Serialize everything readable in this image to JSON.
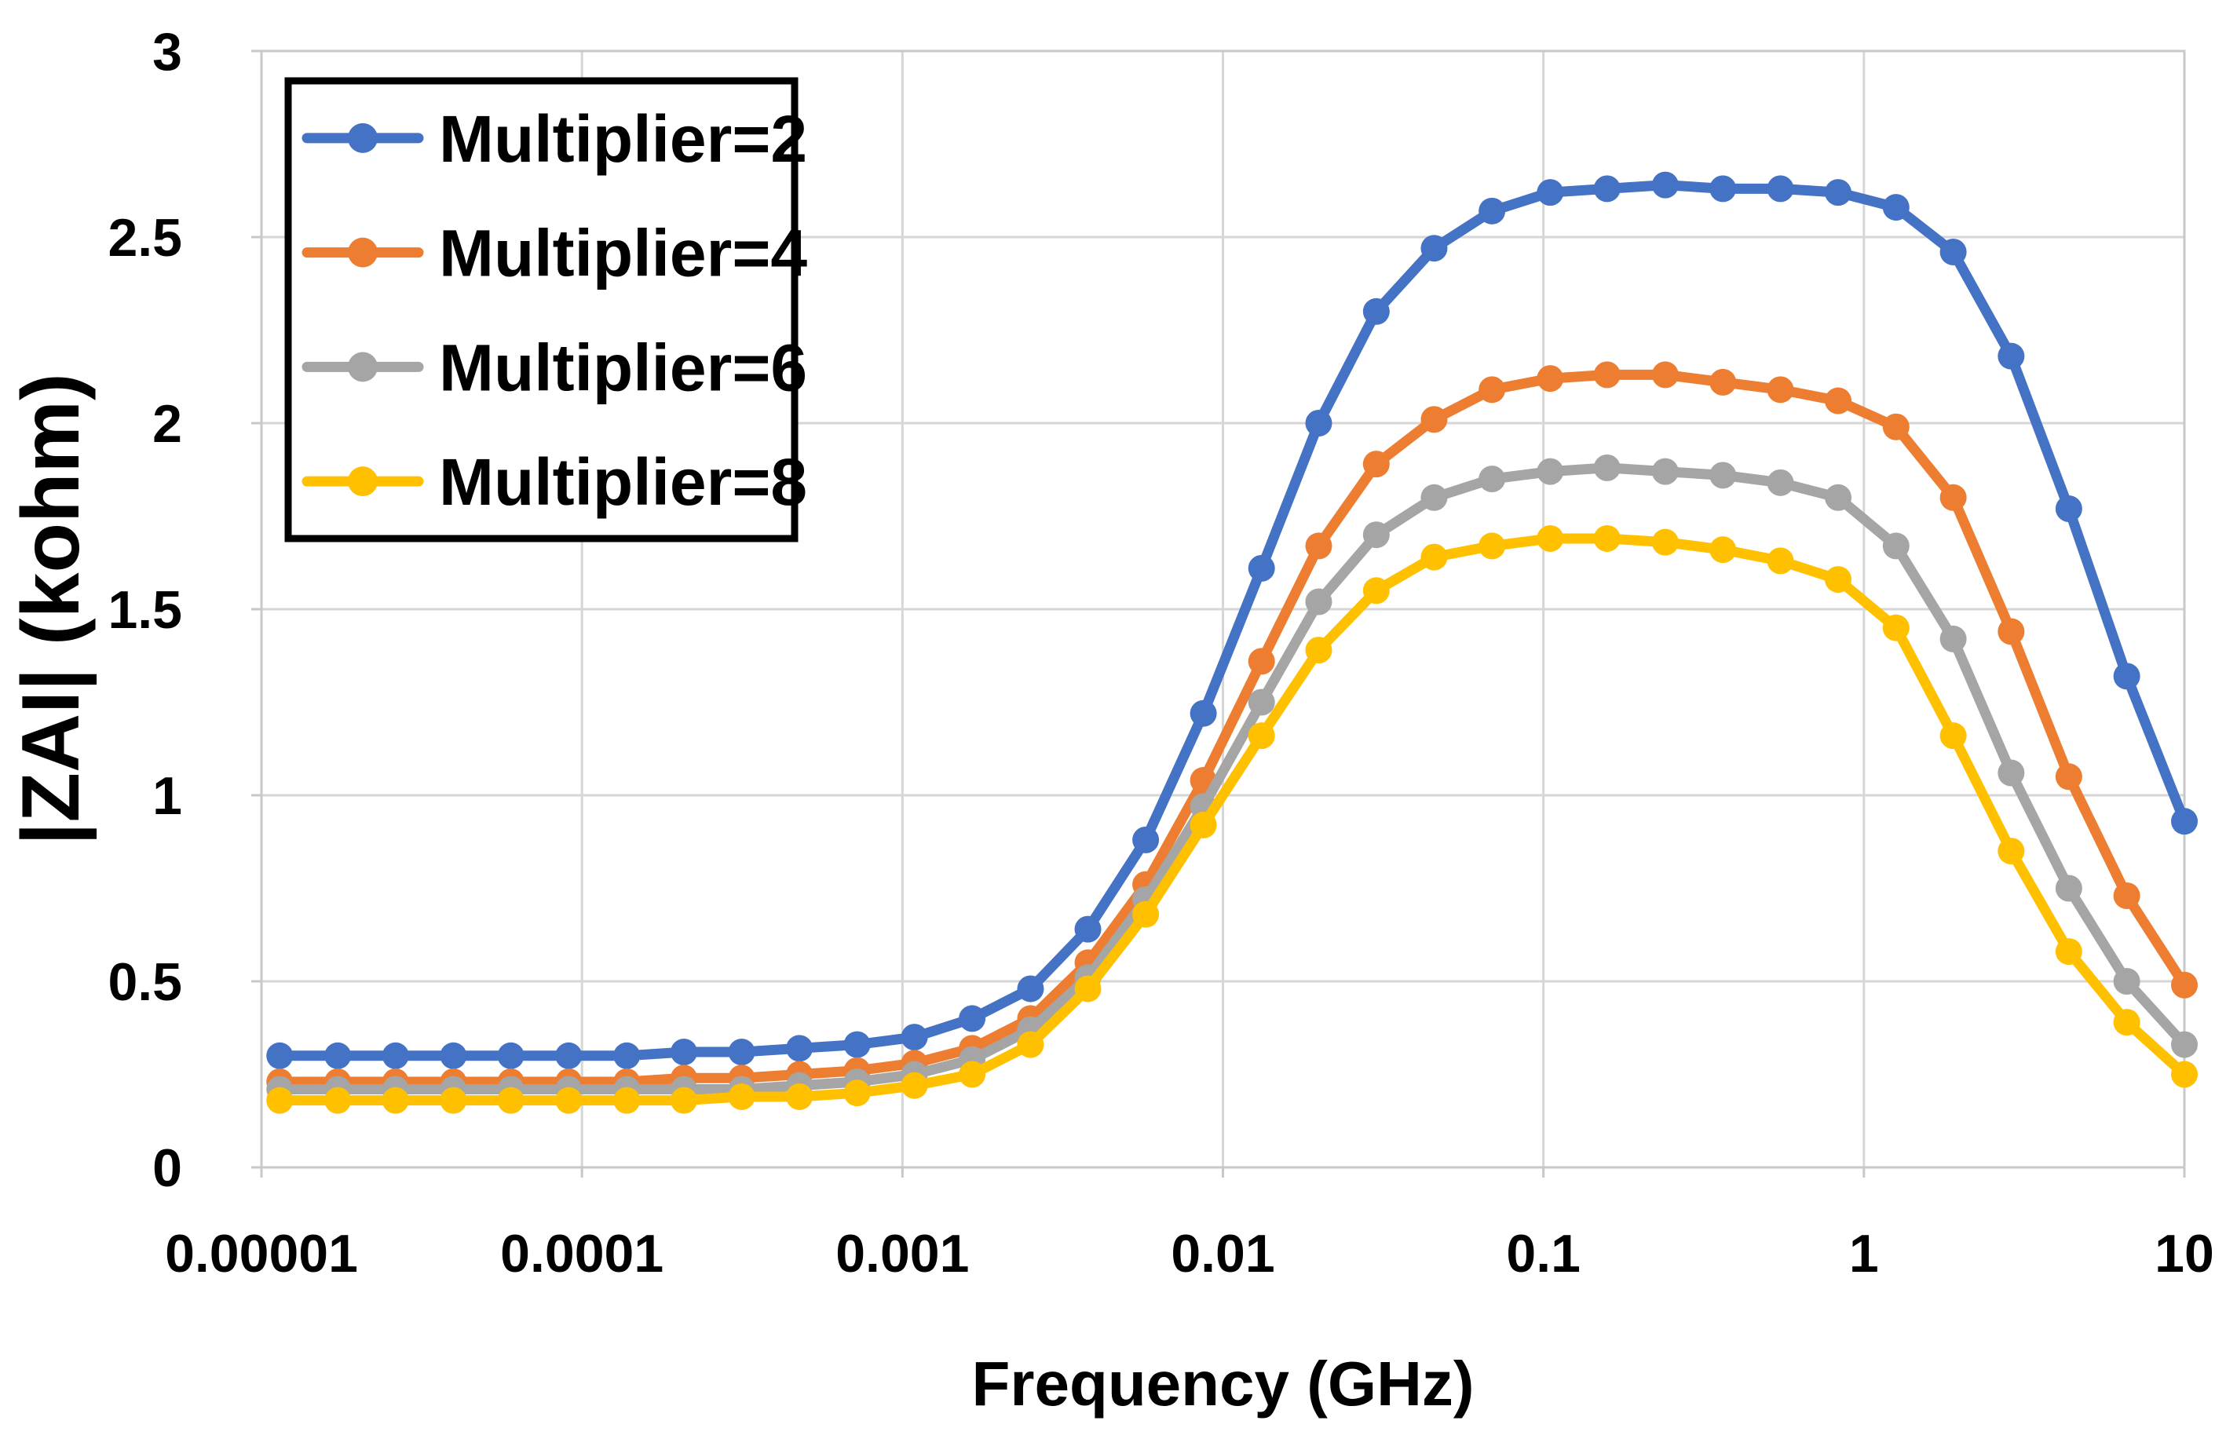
{
  "chart_data": {
    "type": "line",
    "title": "",
    "xlabel": "Frequency (GHz)",
    "ylabel": "|ZAI| (kohm)",
    "x_scale": "log",
    "xlim": [
      1e-05,
      10
    ],
    "ylim": [
      0,
      3
    ],
    "grid": true,
    "legend_position": "top-left-inside",
    "x_ticks": [
      1e-05,
      0.0001,
      0.001,
      0.01,
      0.1,
      1,
      10
    ],
    "x_tick_labels": [
      "0.00001",
      "0.0001",
      "0.001",
      "0.01",
      "0.1",
      "1",
      "10"
    ],
    "y_ticks": [
      0,
      0.5,
      1,
      1.5,
      2,
      2.5,
      3
    ],
    "y_tick_labels": [
      "0",
      "0.5",
      "1",
      "1.5",
      "2",
      "2.5",
      "3"
    ],
    "x": [
      1.14e-05,
      1.73e-05,
      2.62e-05,
      3.97e-05,
      6e-05,
      9.09e-05,
      0.000138,
      0.000208,
      0.000315,
      0.000477,
      0.000722,
      0.00109,
      0.00165,
      0.00251,
      0.00379,
      0.00574,
      0.00869,
      0.0132,
      0.0199,
      0.0301,
      0.0456,
      0.0691,
      0.105,
      0.158,
      0.24,
      0.363,
      0.549,
      0.831,
      1.26,
      1.9,
      2.88,
      4.36,
      6.61,
      10.0
    ],
    "series": [
      {
        "name": "Multiplier=2",
        "color": "#4472C4",
        "values": [
          0.3,
          0.3,
          0.3,
          0.3,
          0.3,
          0.3,
          0.3,
          0.31,
          0.31,
          0.32,
          0.33,
          0.35,
          0.4,
          0.48,
          0.64,
          0.88,
          1.22,
          1.61,
          2.0,
          2.3,
          2.47,
          2.57,
          2.62,
          2.63,
          2.64,
          2.63,
          2.63,
          2.62,
          2.58,
          2.46,
          2.18,
          1.77,
          1.32,
          0.93
        ]
      },
      {
        "name": "Multiplier=4",
        "color": "#ED7D31",
        "values": [
          0.23,
          0.23,
          0.23,
          0.23,
          0.23,
          0.23,
          0.23,
          0.24,
          0.24,
          0.25,
          0.26,
          0.28,
          0.32,
          0.4,
          0.55,
          0.76,
          1.04,
          1.36,
          1.67,
          1.89,
          2.01,
          2.09,
          2.12,
          2.13,
          2.13,
          2.11,
          2.09,
          2.06,
          1.99,
          1.8,
          1.44,
          1.05,
          0.73,
          0.49
        ]
      },
      {
        "name": "Multiplier=6",
        "color": "#A5A5A5",
        "values": [
          0.21,
          0.21,
          0.21,
          0.21,
          0.21,
          0.21,
          0.21,
          0.21,
          0.21,
          0.22,
          0.23,
          0.25,
          0.29,
          0.37,
          0.51,
          0.72,
          0.97,
          1.25,
          1.52,
          1.7,
          1.8,
          1.85,
          1.87,
          1.88,
          1.87,
          1.86,
          1.84,
          1.8,
          1.67,
          1.42,
          1.06,
          0.75,
          0.5,
          0.33
        ]
      },
      {
        "name": "Multiplier=8",
        "color": "#FFC000",
        "values": [
          0.18,
          0.18,
          0.18,
          0.18,
          0.18,
          0.18,
          0.18,
          0.18,
          0.19,
          0.19,
          0.2,
          0.22,
          0.25,
          0.33,
          0.48,
          0.68,
          0.92,
          1.16,
          1.39,
          1.55,
          1.64,
          1.67,
          1.69,
          1.69,
          1.68,
          1.66,
          1.63,
          1.58,
          1.45,
          1.16,
          0.85,
          0.58,
          0.39,
          0.25
        ]
      }
    ]
  },
  "styles": {
    "grid_color": "#D6D6D6",
    "axis_color": "#C8C8C8",
    "text_color": "#000000",
    "legend_border_color": "#000000",
    "background": "#FFFFFF"
  }
}
